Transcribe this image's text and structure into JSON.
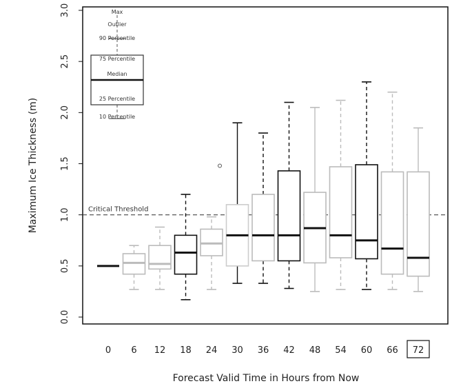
{
  "chart_data": {
    "type": "box",
    "xlabel": "Forecast Valid Time in Hours from Now",
    "ylabel": "Maximum Ice Thickness (m)",
    "ylim": [
      0,
      3
    ],
    "yticks": [
      "0.0",
      "0.5",
      "1.0",
      "1.5",
      "2.0",
      "2.5",
      "3.0"
    ],
    "categories": [
      "0",
      "6",
      "12",
      "18",
      "24",
      "30",
      "36",
      "42",
      "48",
      "54",
      "60",
      "66",
      "72"
    ],
    "highlighted_category": "72",
    "reference_line": {
      "value": 1.0,
      "label": "Critical Threshold"
    },
    "legend": {
      "entries": [
        "Max",
        "Outlier",
        "90 Percentile",
        "75 Percentile",
        "Median",
        "25 Percentile",
        "10 Percentile"
      ]
    },
    "boxes": [
      {
        "category": "0",
        "whisker_low": 0.5,
        "q1": 0.5,
        "median": 0.5,
        "q3": 0.5,
        "whisker_high": 0.5,
        "color": "#111111",
        "dashed": false
      },
      {
        "category": "6",
        "whisker_low": 0.27,
        "q1": 0.42,
        "median": 0.53,
        "q3": 0.62,
        "whisker_high": 0.7,
        "color": "#bbbbbb",
        "dashed": true
      },
      {
        "category": "12",
        "whisker_low": 0.27,
        "q1": 0.47,
        "median": 0.52,
        "q3": 0.7,
        "whisker_high": 0.88,
        "color": "#bbbbbb",
        "dashed": true
      },
      {
        "category": "18",
        "whisker_low": 0.17,
        "q1": 0.42,
        "median": 0.63,
        "q3": 0.8,
        "whisker_high": 1.2,
        "color": "#111111",
        "dashed": true
      },
      {
        "category": "24",
        "whisker_low": 0.27,
        "q1": 0.6,
        "median": 0.72,
        "q3": 0.86,
        "whisker_high": 0.98,
        "color": "#bbbbbb",
        "dashed": true,
        "outlier": 1.48
      },
      {
        "category": "30",
        "whisker_low": 0.33,
        "q1": 0.5,
        "median": 0.8,
        "q3": 1.1,
        "whisker_high": 1.9,
        "color": "#111111",
        "dashed": false,
        "box_color": "#cccccc"
      },
      {
        "category": "36",
        "whisker_low": 0.33,
        "q1": 0.55,
        "median": 0.8,
        "q3": 1.2,
        "whisker_high": 1.8,
        "color": "#111111",
        "dashed": true,
        "box_color": "#bbbbbb"
      },
      {
        "category": "42",
        "whisker_low": 0.28,
        "q1": 0.55,
        "median": 0.8,
        "q3": 1.43,
        "whisker_high": 2.1,
        "color": "#111111",
        "dashed": true
      },
      {
        "category": "48",
        "whisker_low": 0.25,
        "q1": 0.53,
        "median": 0.87,
        "q3": 1.22,
        "whisker_high": 2.05,
        "color": "#bbbbbb",
        "dashed": false,
        "median_color": "#111111"
      },
      {
        "category": "54",
        "whisker_low": 0.27,
        "q1": 0.58,
        "median": 0.8,
        "q3": 1.47,
        "whisker_high": 2.12,
        "color": "#bbbbbb",
        "dashed": true,
        "median_color": "#111111"
      },
      {
        "category": "60",
        "whisker_low": 0.27,
        "q1": 0.57,
        "median": 0.75,
        "q3": 1.49,
        "whisker_high": 2.3,
        "color": "#111111",
        "dashed": true
      },
      {
        "category": "66",
        "whisker_low": 0.27,
        "q1": 0.42,
        "median": 0.67,
        "q3": 1.42,
        "whisker_high": 2.2,
        "color": "#bbbbbb",
        "dashed": true,
        "median_color": "#111111"
      },
      {
        "category": "72",
        "whisker_low": 0.25,
        "q1": 0.4,
        "median": 0.58,
        "q3": 1.42,
        "whisker_high": 1.85,
        "color": "#bbbbbb",
        "dashed": false,
        "median_color": "#111111"
      }
    ]
  }
}
